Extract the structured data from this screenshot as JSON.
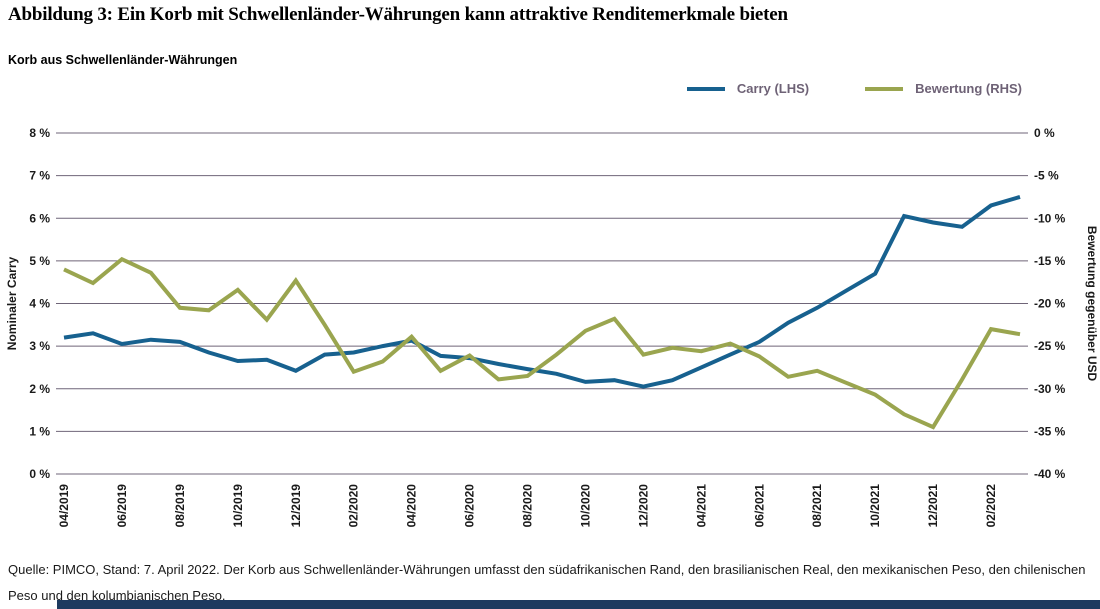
{
  "title": "Abbildung 3: Ein Korb mit Schwellenländer-Währungen kann attraktive Renditemerkmale bieten",
  "subtitle": "Korb aus Schwellenländer-Währungen",
  "legend": [
    {
      "label": "Carry (LHS)",
      "color": "#17618f"
    },
    {
      "label": "Bewertung (RHS)",
      "color": "#9aa54f"
    }
  ],
  "footer": {
    "line1": "Quelle: PIMCO, Stand: 7. April 2022. Der Korb aus Schwellenländer-Währungen umfasst den südafrikanischen Rand, den brasilianischen Real, den mexikanischen Peso, den chilenischen",
    "line2": "Peso und den kolumbianischen Peso."
  },
  "colors": {
    "carry_line": "#17618f",
    "bewertung_line": "#9aa54f",
    "gridline": "#6f6578",
    "legend_text": "#6e6276",
    "accent_bar": "#1d3a5f",
    "text": "#1a1a1a"
  },
  "chart_data": {
    "type": "line",
    "title": "Korb aus Schwellenländer-Währungen",
    "grid": "horizontal",
    "legend_position": "top-right",
    "x_tick_labels": [
      "04/2019",
      "06/2019",
      "08/2019",
      "10/2019",
      "12/2019",
      "02/2020",
      "04/2020",
      "06/2020",
      "08/2020",
      "10/2020",
      "12/2020",
      "04/2021",
      "06/2021",
      "08/2021",
      "10/2021",
      "12/2021",
      "02/2022"
    ],
    "x_labels_every_n_points": 2,
    "left_axis": {
      "title": "Nominaler Carry",
      "min": 0,
      "max": 8,
      "step": 1,
      "tick_labels": [
        "0 %",
        "1 %",
        "2 %",
        "3 %",
        "4 %",
        "5 %",
        "6 %",
        "7 %",
        "8 %"
      ]
    },
    "right_axis": {
      "title": "Bewertung gegenüber USD",
      "min": -40,
      "max": 0,
      "step": 5,
      "tick_labels": [
        "0 %",
        "-5 %",
        "-10 %",
        "-15 %",
        "-20 %",
        "-25 %",
        "-30 %",
        "-35 %",
        "-40 %"
      ]
    },
    "series": [
      {
        "name": "Carry (LHS)",
        "axis": "left",
        "color": "#17618f",
        "values": [
          3.2,
          3.3,
          3.05,
          3.15,
          3.1,
          2.85,
          2.65,
          2.68,
          2.42,
          2.8,
          2.85,
          3.0,
          3.13,
          2.77,
          2.72,
          2.58,
          2.46,
          2.35,
          2.16,
          2.2,
          2.05,
          2.2,
          2.5,
          2.8,
          3.1,
          3.55,
          3.9,
          4.3,
          4.7,
          6.05,
          5.9,
          5.8,
          6.3,
          6.5
        ]
      },
      {
        "name": "Bewertung (RHS)",
        "axis": "right",
        "color": "#9aa54f",
        "values": [
          -16.0,
          -17.6,
          -14.8,
          -16.4,
          -20.5,
          -20.8,
          -18.4,
          -21.9,
          -17.3,
          -22.5,
          -28.0,
          -26.8,
          -23.9,
          -27.9,
          -26.1,
          -28.9,
          -28.5,
          -26.0,
          -23.2,
          -21.8,
          -26.0,
          -25.2,
          -25.6,
          -24.7,
          -26.2,
          -28.6,
          -27.9,
          -29.3,
          -30.7,
          -33.0,
          -34.5,
          -28.9,
          -23.0,
          -23.6
        ]
      }
    ]
  }
}
